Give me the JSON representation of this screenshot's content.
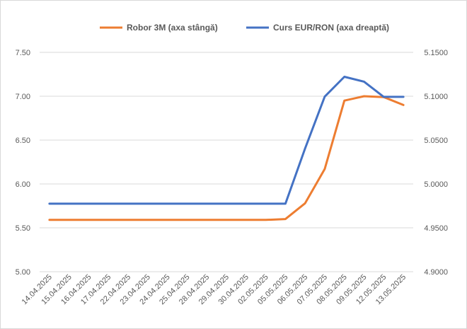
{
  "chart_data": {
    "type": "line",
    "title": "",
    "xlabel": "",
    "ylabel": "",
    "legend_position": "top",
    "grid": true,
    "colors": {
      "robor": "#ED7D31",
      "curs": "#4472C4",
      "grid": "#D9D9D9",
      "text": "#595959"
    },
    "x": [
      "14.04.2025",
      "15.04.2025",
      "16.04.2025",
      "17.04.2025",
      "22.04.2025",
      "23.04.2025",
      "24.04.2025",
      "25.04.2025",
      "28.04.2025",
      "29.04.2025",
      "30.04.2025",
      "02.05.2025",
      "05.05.2025",
      "06.05.2025",
      "07.05.2025",
      "08.05.2025",
      "09.05.2025",
      "12.05.2025",
      "13.05.2025"
    ],
    "y_left": {
      "ticks": [
        "7.50",
        "7.00",
        "6.50",
        "6.00",
        "5.50",
        "5.00"
      ],
      "range": [
        5.0,
        7.5
      ]
    },
    "y_right": {
      "ticks": [
        "5.1500",
        "5.1000",
        "5.0500",
        "5.0000",
        "4.9500",
        "4.9000"
      ],
      "range": [
        4.9,
        5.15
      ]
    },
    "series": [
      {
        "name": "Robor 3M (axa stângă)",
        "axis": "left",
        "color": "#ED7D31",
        "values": [
          5.59,
          5.59,
          5.59,
          5.59,
          5.59,
          5.59,
          5.59,
          5.59,
          5.59,
          5.59,
          5.59,
          5.59,
          5.6,
          5.78,
          6.17,
          6.95,
          7.0,
          6.99,
          6.9
        ]
      },
      {
        "name": "Curs EUR/RON (axa dreaptă)",
        "axis": "right",
        "color": "#4472C4",
        "values": [
          4.9775,
          4.9775,
          4.9775,
          4.9775,
          4.9775,
          4.9775,
          4.9775,
          4.9775,
          4.9775,
          4.9775,
          4.9775,
          4.9775,
          4.9775,
          5.0405,
          5.0995,
          5.1222,
          5.1166,
          5.0993,
          5.0993
        ]
      }
    ]
  }
}
